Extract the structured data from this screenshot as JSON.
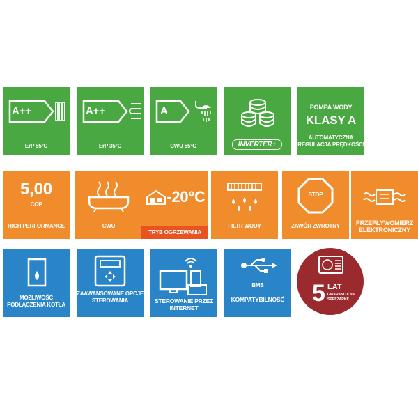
{
  "row1": {
    "erp55": {
      "energy_class": "A++",
      "label": "ErP 55°C"
    },
    "erp35": {
      "energy_class": "A++",
      "label": "ErP 35°C"
    },
    "cwu55": {
      "energy_class": "A",
      "label": "CWU 55°C"
    },
    "inverter": {
      "label": "INVERTER+"
    },
    "pompa": {
      "line1": "POMPA WODY",
      "line2": "KLASY A",
      "line3": "AUTOMATYCZNA",
      "line4": "REGULACJA PRĘDKOŚCI"
    }
  },
  "row2": {
    "cop": {
      "value": "5,00",
      "unit": "COP",
      "label": "HIGH PERFORMANCE"
    },
    "cwu": {
      "label": "CWU"
    },
    "tryb": {
      "temp": "-20°C",
      "label": "TRYB OGRZEWANIA"
    },
    "filtr": {
      "label": "FILTR WODY"
    },
    "zawor": {
      "stop": "STOP",
      "label": "ZAWÓR ZWROTNY"
    },
    "przeplyw": {
      "line1": "PRZEPŁYWOMIERZ",
      "line2": "ELEKTRONICZNY"
    }
  },
  "row3": {
    "kociol": {
      "line1": "MOŻLIWOŚĆ",
      "line2": "PODŁĄCZENIA KOTŁA"
    },
    "opcje": {
      "line1": "ZAAWANSOWANE OPCJE",
      "line2": "STEROWANIA"
    },
    "internet": {
      "line1": "STEROWANIE PRZEZ",
      "line2": "INTERNET"
    },
    "bms": {
      "small": "BMS",
      "label": "KOMPATYBILNOŚĆ"
    },
    "gwarancja": {
      "number": "5",
      "lat": "LAT",
      "line1": "GWARANCJI NA",
      "line2": "SPRĘŻARKĘ"
    }
  },
  "colors": {
    "green": "#4aa843",
    "orange": "#f08c2c",
    "blue": "#2a84c8",
    "red_strip": "#e8531f",
    "maroon": "#9b2a2e"
  }
}
